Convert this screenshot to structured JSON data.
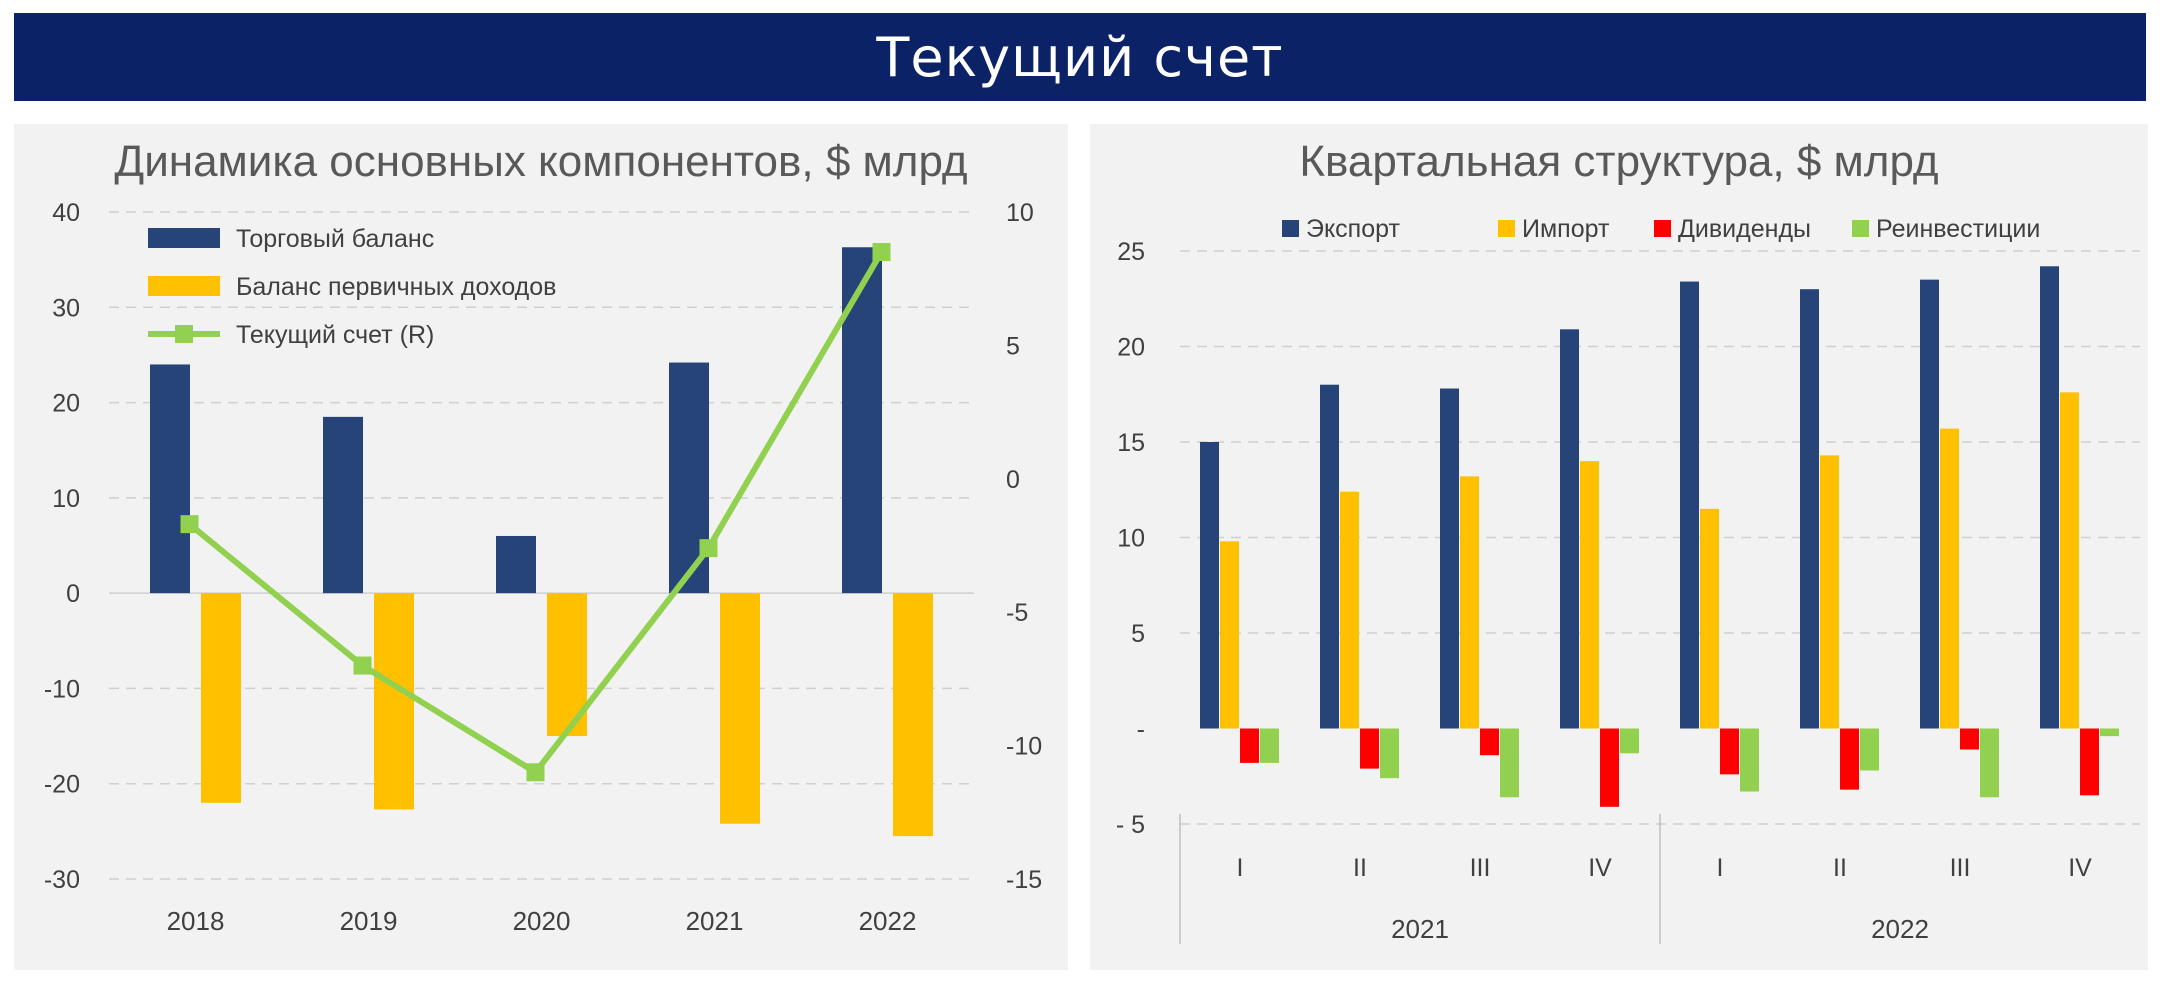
{
  "page_title": "Текущий счет",
  "colors": {
    "trade": "#264478",
    "income": "#ffc000",
    "current": "#92d050",
    "export": "#264478",
    "import": "#ffc000",
    "dividends": "#ff0000",
    "reinvest": "#92d050",
    "banner": "#0b2266",
    "grid": "#d0d0d0",
    "text": "#404040"
  },
  "chart_data": [
    {
      "type": "bar+line",
      "title": "Динамика основных компонентов, $ млрд",
      "categories": [
        "2018",
        "2019",
        "2020",
        "2021",
        "2022"
      ],
      "ylim": [
        -30,
        40
      ],
      "y_ticks": [
        "40",
        "30",
        "20",
        "10",
        "0",
        "-10",
        "-20",
        "-30"
      ],
      "y2lim": [
        -15,
        10
      ],
      "y2_ticks": [
        "10",
        "5",
        "0",
        "-5",
        "-10",
        "-15"
      ],
      "legend_position": "top-left",
      "grid": true,
      "series": [
        {
          "name": "Торговый баланс",
          "kind": "bar",
          "axis": "left",
          "values": [
            24.0,
            18.5,
            6.0,
            24.2,
            36.3
          ]
        },
        {
          "name": "Баланс первичных доходов",
          "kind": "bar",
          "axis": "left",
          "values": [
            -22.0,
            -22.7,
            -15.0,
            -24.2,
            -25.5
          ]
        },
        {
          "name": "Текущий счет (R)",
          "kind": "line",
          "axis": "right",
          "values": [
            -1.7,
            -7.0,
            -11.0,
            -2.6,
            8.5
          ]
        }
      ]
    },
    {
      "type": "bar",
      "title": "Квартальная структура, $ млрд",
      "categories": [
        "I",
        "II",
        "III",
        "IV",
        "I",
        "II",
        "III",
        "IV"
      ],
      "groups": [
        "2021",
        "2022"
      ],
      "ylim": [
        -5,
        25
      ],
      "y_ticks": [
        "25",
        "20",
        "15",
        "10",
        "5",
        "-",
        "- 5"
      ],
      "legend_position": "top",
      "grid": true,
      "series": [
        {
          "name": "Экспорт",
          "values": [
            15.0,
            18.0,
            17.8,
            20.9,
            23.4,
            23.0,
            23.5,
            24.2
          ]
        },
        {
          "name": "Импорт",
          "values": [
            9.8,
            12.4,
            13.2,
            14.0,
            11.5,
            14.3,
            15.7,
            17.6
          ]
        },
        {
          "name": "Дивиденды",
          "values": [
            -1.8,
            -2.1,
            -1.4,
            -4.1,
            -2.4,
            -3.2,
            -1.1,
            -3.5
          ]
        },
        {
          "name": "Реинвестиции",
          "values": [
            -1.8,
            -2.6,
            -3.6,
            -1.3,
            -3.3,
            -2.2,
            -3.6,
            -0.4
          ]
        }
      ]
    }
  ]
}
